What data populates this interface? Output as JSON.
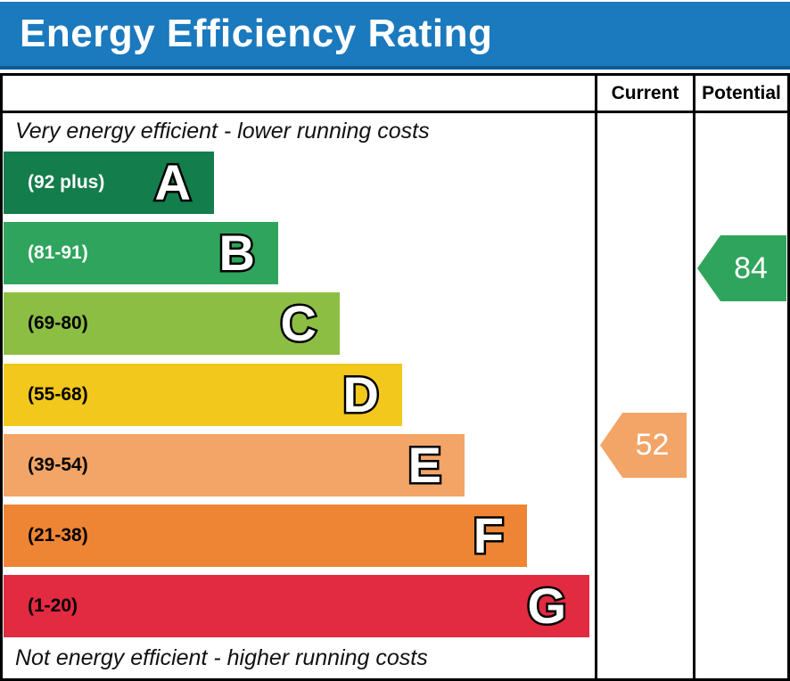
{
  "title": "Energy Efficiency Rating",
  "header": {
    "current_label": "Current",
    "potential_label": "Potential"
  },
  "captions": {
    "top": "Very energy efficient - lower running costs",
    "bottom": "Not energy efficient - higher running costs"
  },
  "colors": {
    "banner_bg": "#1b79bd",
    "banner_edge": "#0e5a94",
    "table_border": "#000000",
    "arrow_value_text": "#ffffff"
  },
  "chart_data": {
    "type": "bar",
    "title": "Energy Efficiency Rating",
    "categories": [
      "A",
      "B",
      "C",
      "D",
      "E",
      "F",
      "G"
    ],
    "bands": [
      {
        "letter": "A",
        "range_label": "(92 plus)",
        "min": 92,
        "max": 100,
        "color": "#137d4b",
        "text_color": "#ffffff"
      },
      {
        "letter": "B",
        "range_label": "(81-91)",
        "min": 81,
        "max": 91,
        "color": "#2fa45c",
        "text_color": "#ffffff"
      },
      {
        "letter": "C",
        "range_label": "(69-80)",
        "min": 69,
        "max": 80,
        "color": "#8cbe44",
        "text_color": "#000000"
      },
      {
        "letter": "D",
        "range_label": "(55-68)",
        "min": 55,
        "max": 68,
        "color": "#f2c81d",
        "text_color": "#000000"
      },
      {
        "letter": "E",
        "range_label": "(39-54)",
        "min": 39,
        "max": 54,
        "color": "#f2a567",
        "text_color": "#000000"
      },
      {
        "letter": "F",
        "range_label": "(21-38)",
        "min": 21,
        "max": 38,
        "color": "#ee8534",
        "text_color": "#000000"
      },
      {
        "letter": "G",
        "range_label": "(1-20)",
        "min": 1,
        "max": 20,
        "color": "#e22a41",
        "text_color": "#000000"
      }
    ],
    "current": {
      "value": 52,
      "band": "E",
      "color": "#f2a567"
    },
    "potential": {
      "value": 84,
      "band": "B",
      "color": "#2fa45c"
    }
  }
}
